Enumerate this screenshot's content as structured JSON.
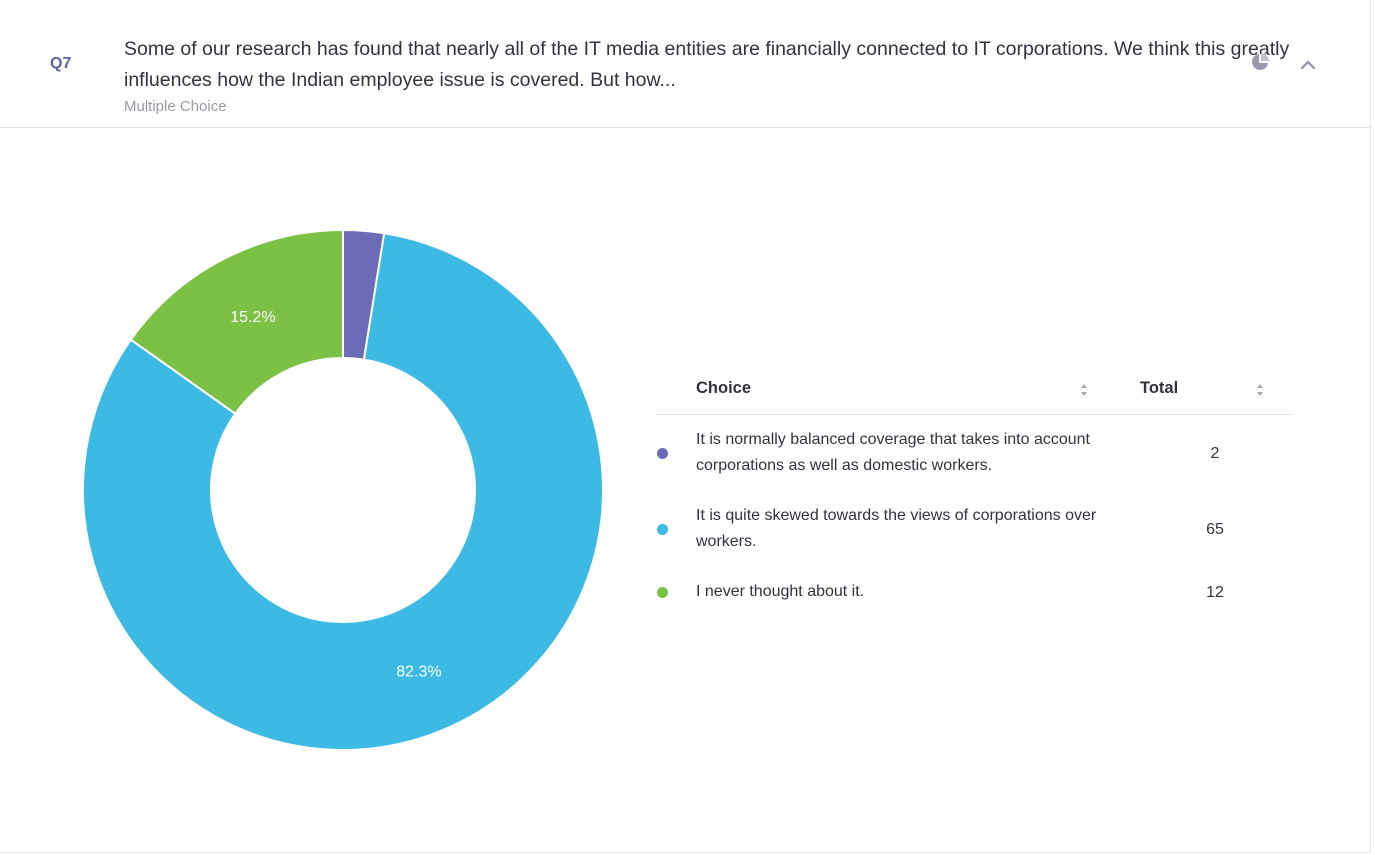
{
  "question": {
    "number": "Q7",
    "text": "Some of our research has found that nearly all of the IT media entities are financially connected to IT corporations. We think this greatly influences how the Indian employee issue is covered. But how...",
    "type": "Multiple Choice"
  },
  "icons": {
    "chart_toggle": "pie-chart-icon",
    "collapse": "chevron-up-icon"
  },
  "table": {
    "header_choice": "Choice",
    "header_total": "Total",
    "rows": [
      {
        "choice": "It is normally balanced coverage that takes into account corporations as well as domestic workers.",
        "total": "2",
        "color": "#6b6bb8"
      },
      {
        "choice": "It is quite skewed towards the views of corporations over workers.",
        "total": "65",
        "color": "#3cbae4"
      },
      {
        "choice": "I never thought about it.",
        "total": "12",
        "color": "#7bc143"
      }
    ]
  },
  "chart_data": {
    "type": "pie",
    "donut": true,
    "categories": [
      "It is normally balanced coverage that takes into account corporations as well as domestic workers.",
      "It is quite skewed towards the views of corporations over workers.",
      "I never thought about it."
    ],
    "values": [
      2,
      65,
      12
    ],
    "colors": [
      "#6b6bb8",
      "#3cbae4",
      "#7bc143"
    ],
    "data_labels": [
      "",
      "82.3%",
      "15.2%"
    ]
  }
}
